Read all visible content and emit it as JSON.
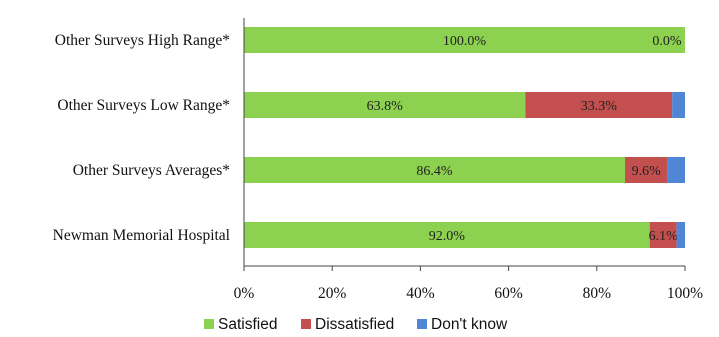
{
  "chart_data": {
    "type": "bar",
    "orientation": "horizontal",
    "stacked": true,
    "categories": [
      "Other Surveys High Range*",
      "Other Surveys Low Range*",
      "Other Surveys Averages*",
      "Newman Memorial Hospital"
    ],
    "series": [
      {
        "name": "Satisfied",
        "color": "#8cd14f",
        "values": [
          100.0,
          63.8,
          86.4,
          92.0
        ],
        "labels": [
          "100.0%",
          "63.8%",
          "86.4%",
          "92.0%"
        ]
      },
      {
        "name": "Dissatisfied",
        "color": "#c44f4f",
        "values": [
          0.0,
          33.3,
          9.6,
          6.1
        ],
        "labels": [
          "0.0%",
          "33.3%",
          "9.6%",
          "6.1%"
        ]
      },
      {
        "name": "Don't know",
        "color": "#4f86d6",
        "values": [
          0.0,
          2.9,
          4.0,
          1.9
        ],
        "labels": [
          "",
          "",
          "",
          ""
        ]
      }
    ],
    "xlim": [
      0,
      100
    ],
    "xticks": [
      "0%",
      "20%",
      "40%",
      "60%",
      "80%",
      "100%"
    ],
    "grid": false,
    "legend": "bottom",
    "title": "",
    "xlabel": "",
    "ylabel": ""
  }
}
